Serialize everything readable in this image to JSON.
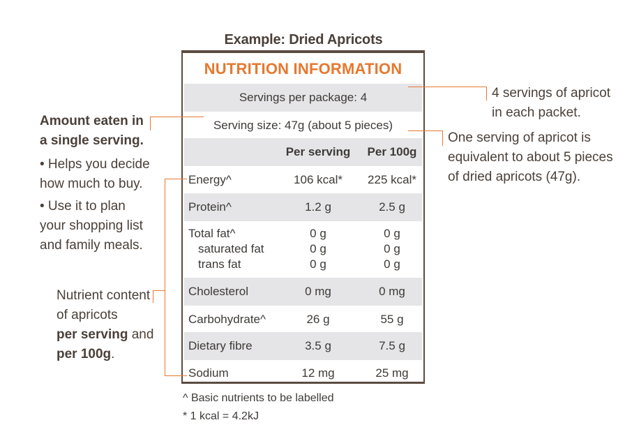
{
  "example_title": "Example: Dried Apricots",
  "label": {
    "title": "NUTRITION INFORMATION",
    "servings_per_package": "Servings per package: 4",
    "serving_size": "Serving size: 47g (about 5 pieces)",
    "col_per_serving": "Per serving",
    "col_per_100g": "Per 100g",
    "rows": [
      {
        "name": "Energy^",
        "per_serving": "106 kcal*",
        "per_100g": "225 kcal*"
      },
      {
        "name": "Protein^",
        "per_serving": "1.2 g",
        "per_100g": "2.5 g"
      },
      {
        "name": "Total fat^",
        "per_serving": "0 g",
        "per_100g": "0 g"
      },
      {
        "name": "saturated fat",
        "per_serving": "0 g",
        "per_100g": "0 g"
      },
      {
        "name": "trans fat",
        "per_serving": "0 g",
        "per_100g": "0 g"
      },
      {
        "name": "Cholesterol",
        "per_serving": "0 mg",
        "per_100g": "0 mg"
      },
      {
        "name": "Carbohydrate^",
        "per_serving": "26 g",
        "per_100g": "55 g"
      },
      {
        "name": "Dietary fibre",
        "per_serving": "3.5 g",
        "per_100g": "7.5 g"
      },
      {
        "name": "Sodium",
        "per_serving": "12 mg",
        "per_100g": "25 mg"
      }
    ]
  },
  "footnotes": {
    "basic": "^ Basic nutrients to be labelled",
    "kcal": "*  1 kcal = 4.2kJ"
  },
  "annotations": {
    "servings_note_l1": "4 servings of apricot",
    "servings_note_l2": "in each packet.",
    "serving_size_note_l1": "One serving of apricot is",
    "serving_size_note_l2": "equivalent to about 5 pieces",
    "serving_size_note_l3": "of dried apricots (47g).",
    "amount_title_l1": "Amount eaten in",
    "amount_title_l2": "a single serving.",
    "bullet1_l1": "• Helps you decide",
    "bullet1_l2": "how much to buy.",
    "bullet2_l1": "• Use it to plan",
    "bullet2_l2": "your shopping list",
    "bullet2_l3": "and family meals.",
    "nutrient_l1": "Nutrient content",
    "nutrient_l2": "of apricots",
    "nutrient_bold1": "per serving",
    "nutrient_and": " and",
    "nutrient_bold2": "per 100g",
    "nutrient_period": "."
  },
  "colors": {
    "accent": "#e7782f",
    "text": "#4a4039",
    "row_grey": "#e5e5e7",
    "border": "#5a4b41"
  }
}
